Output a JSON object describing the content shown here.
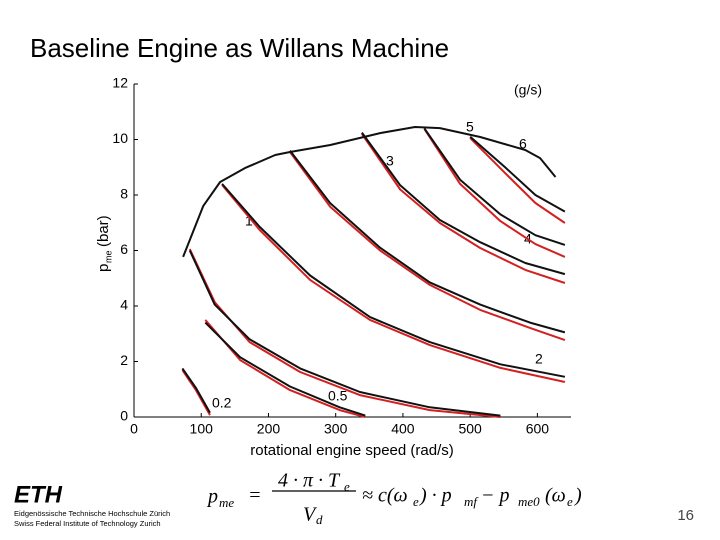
{
  "header": {
    "title": "Baseline Engine as Willans Machine"
  },
  "chart_data": {
    "type": "line",
    "xlabel": "rotational engine speed (rad/s)",
    "ylabel": "p",
    "ylabel_sub": "me",
    "ylabel_unit": "(bar)",
    "units_annotation": "(g/s)",
    "xlim": [
      0,
      650
    ],
    "ylim": [
      0,
      12
    ],
    "xticks": [
      0,
      100,
      200,
      300,
      400,
      500,
      600
    ],
    "yticks": [
      0,
      2,
      4,
      6,
      8,
      10,
      12
    ],
    "grid": false,
    "series": [
      {
        "name": "0.2",
        "color": "#d42020",
        "x": [
          72,
          92,
          113
        ],
        "values": [
          1.69,
          0.97,
          0.07
        ]
      },
      {
        "name": "0.5",
        "color": "#d42020",
        "x": [
          106,
          158,
          232,
          306,
          344
        ],
        "values": [
          3.5,
          2.05,
          0.97,
          0.25,
          0
        ]
      },
      {
        "name": "1",
        "color": "#d42020",
        "x": [
          83,
          120,
          172,
          247,
          336,
          440,
          545
        ],
        "values": [
          6.05,
          4.14,
          2.7,
          1.62,
          0.79,
          0.25,
          0
        ]
      },
      {
        "name": "2",
        "color": "#d42020",
        "x": [
          131,
          187,
          262,
          351,
          440,
          545,
          641
        ],
        "values": [
          8.36,
          6.74,
          4.94,
          3.5,
          2.59,
          1.77,
          1.26
        ]
      },
      {
        "name": "3",
        "color": "#d42020",
        "x": [
          232,
          292,
          366,
          440,
          515,
          589,
          641
        ],
        "values": [
          9.55,
          7.57,
          6.0,
          4.76,
          3.86,
          3.21,
          2.77
        ]
      },
      {
        "name": "4",
        "color": "#d42020",
        "x": [
          339,
          396,
          455,
          515,
          582,
          641
        ],
        "values": [
          10.2,
          8.2,
          6.99,
          6.09,
          5.3,
          4.83
        ]
      },
      {
        "name": "5",
        "color": "#d42020",
        "x": [
          432,
          485,
          545,
          597,
          641
        ],
        "values": [
          10.38,
          8.4,
          7.06,
          6.23,
          5.77
        ]
      },
      {
        "name": "6",
        "color": "#d42020",
        "x": [
          500,
          552,
          597,
          641
        ],
        "values": [
          10.05,
          8.79,
          7.71,
          6.99
        ]
      },
      {
        "color": "#111111",
        "x": [
          72,
          92,
          113
        ],
        "values": [
          1.75,
          1.05,
          0.15
        ]
      },
      {
        "color": "#111111",
        "x": [
          106,
          158,
          232,
          306,
          344
        ],
        "values": [
          3.4,
          2.15,
          1.1,
          0.35,
          0.05
        ]
      },
      {
        "color": "#111111",
        "x": [
          83,
          120,
          172,
          247,
          336,
          440,
          545
        ],
        "values": [
          6.0,
          4.05,
          2.8,
          1.75,
          0.9,
          0.35,
          0.05
        ]
      },
      {
        "color": "#111111",
        "x": [
          131,
          187,
          262,
          351,
          440,
          545,
          641
        ],
        "values": [
          8.4,
          6.85,
          5.1,
          3.6,
          2.7,
          1.9,
          1.45
        ]
      },
      {
        "color": "#111111",
        "x": [
          232,
          292,
          366,
          440,
          515,
          589,
          641
        ],
        "values": [
          9.6,
          7.7,
          6.1,
          4.85,
          4.05,
          3.4,
          3.05
        ]
      },
      {
        "color": "#111111",
        "x": [
          339,
          396,
          455,
          515,
          582,
          641
        ],
        "values": [
          10.25,
          8.35,
          7.1,
          6.3,
          5.55,
          5.15
        ]
      },
      {
        "color": "#111111",
        "x": [
          432,
          485,
          545,
          597,
          641
        ],
        "values": [
          10.4,
          8.55,
          7.3,
          6.55,
          6.2
        ]
      },
      {
        "color": "#111111",
        "x": [
          500,
          552,
          597,
          641
        ],
        "values": [
          10.1,
          9.0,
          8.0,
          7.4
        ]
      },
      {
        "color": "#111111",
        "x": [
          73,
          103,
          128,
          165,
          210,
          232,
          292,
          366,
          418,
          455,
          515,
          582,
          604,
          627
        ],
        "values": [
          5.77,
          7.6,
          8.47,
          8.97,
          9.44,
          9.55,
          9.8,
          10.23,
          10.45,
          10.41,
          10.09,
          9.62,
          9.33,
          8.65
        ]
      }
    ]
  },
  "formula": [
    "p",
    "me",
    "=",
    "4 · π · T",
    "e",
    "V",
    "d",
    "≈ c(ω",
    "e",
    ") · p",
    "mf",
    "− p",
    "me0",
    "(ω",
    "e",
    ")"
  ],
  "footer": {
    "logo": "ETH",
    "line1": "Eidgenössische Technische Hochschule Zürich",
    "line2": "Swiss Federal Institute of Technology Zurich",
    "page": "16"
  }
}
